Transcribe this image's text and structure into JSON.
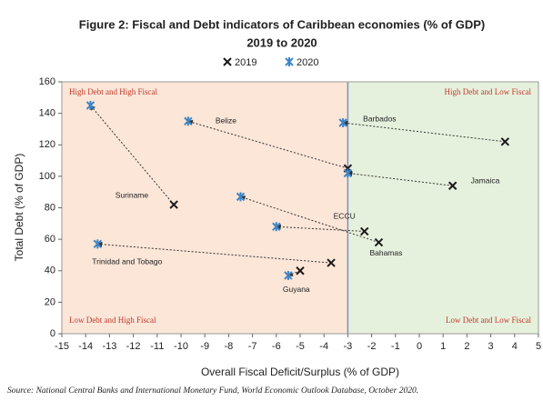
{
  "chart_data": {
    "type": "scatter",
    "title": "Figure 2: Fiscal and Debt indicators of Caribbean economies (% of GDP)",
    "subtitle": "2019 to 2020",
    "x_label": "Overall Fiscal Deficit/Surplus (% of GDP)",
    "y_label": "Total Debt  (% of GDP)",
    "source": "Source: National Central Banks and International Monetary Fund, World Economic Outlook Database, October 2020.",
    "quadrant_labels": [
      "High Debt and High Fiscal",
      "High Debt and Low Fiscal",
      "Low Debt and High Fiscal",
      "Low Debt and Low Fiscal"
    ],
    "threshold_x": -3,
    "labels": [
      "Barbados",
      "Belize",
      "Jamaica",
      "Suriname",
      "ECCU",
      "Bahamas",
      "Trinidad and Tobago",
      "Guyana"
    ],
    "series": [
      {
        "name": "2019",
        "color": "#1a1a1a",
        "x": [
          3.6,
          -3.0,
          1.4,
          -10.3,
          -2.3,
          -1.7,
          -3.7,
          -5.0
        ],
        "values": [
          122,
          105,
          94,
          82,
          65,
          58,
          45,
          40
        ]
      },
      {
        "name": "2020",
        "color": "#3d85c6",
        "x": [
          -3.2,
          -9.7,
          -3.0,
          -13.8,
          -6.0,
          -7.5,
          -13.5,
          -5.5
        ],
        "values": [
          134,
          135,
          102,
          145,
          68,
          87,
          57,
          37
        ]
      }
    ],
    "xlim": [
      -15,
      5
    ],
    "xticks": [
      -15,
      -14,
      -13,
      -12,
      -11,
      -10,
      -9,
      -8,
      -7,
      -6,
      -5,
      -4,
      -3,
      -2,
      -1,
      0,
      1,
      2,
      3,
      4,
      5
    ],
    "ylim": [
      0,
      160
    ],
    "yticks": [
      0,
      20,
      40,
      60,
      80,
      100,
      120,
      140,
      160
    ]
  }
}
